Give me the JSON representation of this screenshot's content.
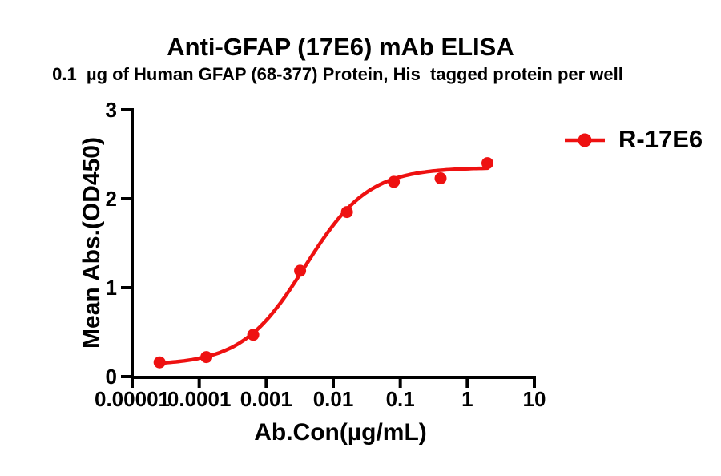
{
  "chart_data": {
    "type": "line",
    "title": "Anti-GFAP (17E6) mAb ELISA",
    "subtitle": "0.1  µg of Human GFAP (68-377) Protein, His  tagged protein per well",
    "xlabel": "Ab.Con(µg/mL)",
    "ylabel": "Mean Abs.(OD450)",
    "x_scale": "log10",
    "xlim": [
      1e-05,
      10
    ],
    "ylim": [
      0,
      3
    ],
    "grid": false,
    "x_tick_labels": [
      "0.00001",
      "0.0001",
      "0.001",
      "0.01",
      "0.1",
      "1",
      "10"
    ],
    "x_tick_values": [
      1e-05,
      0.0001,
      0.001,
      0.01,
      0.1,
      1,
      10
    ],
    "y_tick_labels": [
      "0",
      "1",
      "2",
      "3"
    ],
    "y_tick_values": [
      0,
      1,
      2,
      3
    ],
    "legend_position": "right-top",
    "axis_color": "#000000",
    "series": [
      {
        "name": "R-17E6",
        "color": "#EE1111",
        "marker": "circle",
        "points_x": [
          2.56e-05,
          0.000128,
          0.00064,
          0.0032,
          0.016,
          0.08,
          0.4,
          2
        ],
        "points_y": [
          0.16,
          0.22,
          0.47,
          1.19,
          1.85,
          2.19,
          2.23,
          2.4
        ],
        "fit": {
          "model": "4PL",
          "bottom": 0.13,
          "top": 2.35,
          "ec50": 0.0038,
          "hill": 0.92
        }
      }
    ]
  }
}
